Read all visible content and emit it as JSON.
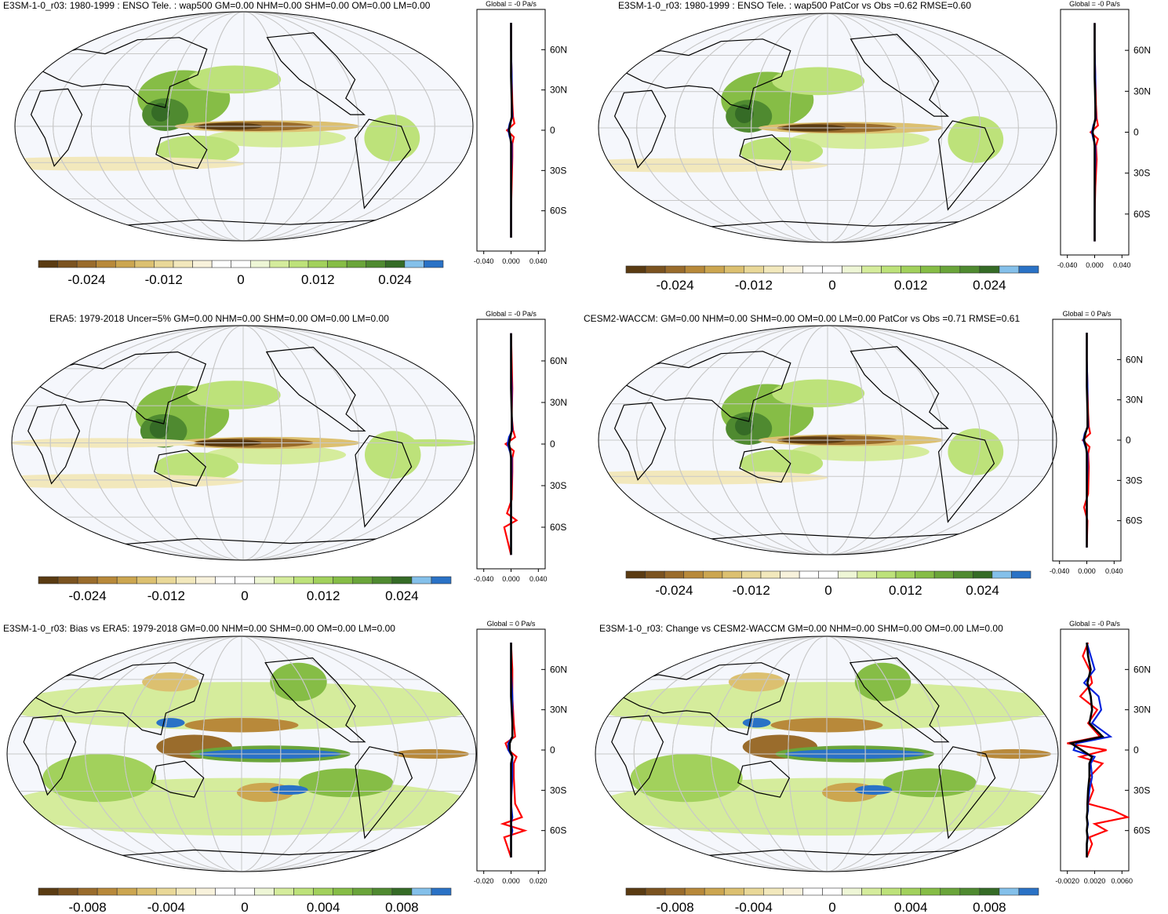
{
  "colors": {
    "ocean": "#f5f7fc",
    "grid": "#c8c8c8",
    "land_line": "#000000",
    "line_red": "#ff0000",
    "line_blue": "#0022dd",
    "line_black": "#000000",
    "palette": [
      "#5a3b12",
      "#7b5320",
      "#9a6c2c",
      "#b8893a",
      "#cca650",
      "#dcc070",
      "#e9d898",
      "#f2e8bc",
      "#f8f2dc",
      "#ffffff",
      "#ffffff",
      "#eef6d6",
      "#d5ec9c",
      "#bde27a",
      "#a2d15c",
      "#86bd46",
      "#6aa53a",
      "#4f8a30",
      "#356b26",
      "#84c0ea",
      "#2a72c6"
    ]
  },
  "panels": [
    {
      "id": "e3sm-model",
      "title": "E3SM-1-0_r03: 1980-1999 : ENSO Tele. : wap500 GM=0.00 NHM=0.00 SHM=0.00 OM=0.00 LM=0.00",
      "global_label": "Global = -0 Pa/s",
      "lat_labels": [
        "60N",
        "30N",
        "0",
        "30S",
        "60S"
      ],
      "x_ticks": [
        "-0.040",
        "0.000",
        "0.040"
      ],
      "colorbar_labels": [
        "-0.024",
        "-0.012",
        "0",
        "0.012",
        "0.024"
      ],
      "chart_data": {
        "type": "heatmap",
        "variable": "wap500",
        "units": "Pa/s",
        "projection": "Robinson",
        "colorbar_ticks": [
          -0.024,
          -0.012,
          0,
          0.012,
          0.024
        ],
        "zonal_mean": {
          "type": "line",
          "xlim": [
            -0.05,
            0.05
          ],
          "lat": [
            80,
            60,
            40,
            20,
            10,
            5,
            0,
            -5,
            -10,
            -20,
            -40,
            -60,
            -80
          ],
          "series": [
            {
              "name": "red",
              "values": [
                0,
                0,
                0.001,
                0.002,
                0.003,
                0.005,
                -0.006,
                0.004,
                0.002,
                0.002,
                0.001,
                0,
                0
              ]
            },
            {
              "name": "blue",
              "values": [
                0,
                0,
                0.001,
                0.001,
                0.002,
                -0.002,
                -0.004,
                -0.002,
                0.001,
                0.001,
                0,
                0,
                0
              ]
            },
            {
              "name": "black",
              "values": [
                0,
                0,
                0,
                0.001,
                0.001,
                -0.001,
                -0.003,
                -0.001,
                0,
                0,
                0,
                0,
                0
              ]
            }
          ]
        }
      }
    },
    {
      "id": "e3sm-patcor",
      "title": "E3SM-1-0_r03: 1980-1999 : ENSO Tele. : wap500 PatCor vs Obs =0.62 RMSE=0.60",
      "global_label": "Global = -0 Pa/s",
      "lat_labels": [
        "60N",
        "30N",
        "0",
        "30S",
        "60S"
      ],
      "x_ticks": [
        "-0.040",
        "0.000",
        "0.040"
      ],
      "colorbar_labels": [
        "-0.024",
        "-0.012",
        "0",
        "0.012",
        "0.024"
      ],
      "chart_data": {
        "type": "heatmap",
        "variable": "wap500",
        "units": "Pa/s",
        "projection": "Robinson",
        "colorbar_ticks": [
          -0.024,
          -0.012,
          0,
          0.012,
          0.024
        ],
        "pattern_correlation": 0.62,
        "rmse": 0.6,
        "zonal_mean": {
          "type": "line",
          "xlim": [
            -0.05,
            0.05
          ],
          "lat": [
            80,
            60,
            40,
            20,
            10,
            5,
            0,
            -5,
            -10,
            -20,
            -40,
            -60,
            -80
          ],
          "series": [
            {
              "name": "red",
              "values": [
                0,
                0,
                0.001,
                0.002,
                0.003,
                0.005,
                -0.006,
                0.005,
                0.002,
                0.003,
                0.001,
                0,
                0
              ]
            },
            {
              "name": "blue",
              "values": [
                0,
                0,
                0.001,
                0.001,
                0.002,
                -0.002,
                -0.004,
                -0.002,
                0.001,
                0.001,
                0,
                0,
                0
              ]
            },
            {
              "name": "black",
              "values": [
                0,
                0,
                0,
                0.001,
                0.001,
                -0.001,
                -0.003,
                -0.001,
                0,
                0,
                0,
                0,
                0
              ]
            }
          ]
        }
      }
    },
    {
      "id": "era5-obs",
      "title": "ERA5: 1979-2018 Uncer=5% GM=0.00 NHM=0.00 SHM=0.00 OM=0.00 LM=0.00",
      "global_label": "Global = -0 Pa/s",
      "lat_labels": [
        "60N",
        "30N",
        "0",
        "30S",
        "60S"
      ],
      "x_ticks": [
        "-0.040",
        "0.000",
        "0.040"
      ],
      "colorbar_labels": [
        "-0.024",
        "-0.012",
        "0",
        "0.012",
        "0.024"
      ],
      "chart_data": {
        "type": "heatmap",
        "variable": "wap500",
        "units": "Pa/s",
        "projection": "Robinson",
        "colorbar_ticks": [
          -0.024,
          -0.012,
          0,
          0.012,
          0.024
        ],
        "uncertainty": "5%",
        "zonal_mean": {
          "type": "line",
          "xlim": [
            -0.05,
            0.05
          ],
          "lat": [
            80,
            60,
            40,
            20,
            10,
            5,
            0,
            -5,
            -10,
            -20,
            -40,
            -50,
            -55,
            -60,
            -80
          ],
          "series": [
            {
              "name": "red",
              "values": [
                0,
                0.001,
                0.002,
                0.001,
                0.003,
                0.006,
                -0.008,
                0.004,
                0.002,
                0.002,
                0.001,
                -0.006,
                0.008,
                -0.01,
                0
              ]
            },
            {
              "name": "blue",
              "values": [
                0,
                0,
                0.001,
                0.001,
                0.002,
                -0.003,
                -0.005,
                -0.002,
                0.001,
                0.001,
                0,
                0,
                0,
                0,
                0
              ]
            },
            {
              "name": "black",
              "values": [
                0,
                0,
                0,
                0.001,
                0.001,
                -0.001,
                -0.003,
                -0.001,
                0,
                0,
                0,
                0,
                0,
                0,
                0
              ]
            }
          ]
        }
      }
    },
    {
      "id": "cesm2-waccm",
      "title": "CESM2-WACCM: GM=0.00 NHM=0.00 SHM=0.00 OM=0.00 LM=0.00 PatCor vs Obs =0.71 RMSE=0.61",
      "global_label": "Global = 0 Pa/s",
      "lat_labels": [
        "60N",
        "30N",
        "0",
        "30S",
        "60S"
      ],
      "x_ticks": [
        "-0.040",
        "0.000",
        "0.040"
      ],
      "colorbar_labels": [
        "-0.024",
        "-0.012",
        "0",
        "0.012",
        "0.024"
      ],
      "chart_data": {
        "type": "heatmap",
        "variable": "wap500",
        "units": "Pa/s",
        "projection": "Robinson",
        "colorbar_ticks": [
          -0.024,
          -0.012,
          0,
          0.012,
          0.024
        ],
        "pattern_correlation": 0.71,
        "rmse": 0.61,
        "zonal_mean": {
          "type": "line",
          "xlim": [
            -0.05,
            0.05
          ],
          "lat": [
            80,
            60,
            40,
            20,
            10,
            5,
            0,
            -5,
            -10,
            -20,
            -40,
            -50,
            -60,
            -80
          ],
          "series": [
            {
              "name": "red",
              "values": [
                0,
                0,
                0.001,
                0.002,
                0.003,
                0.005,
                -0.006,
                0.004,
                0.002,
                0.003,
                0.002,
                -0.004,
                0.001,
                0
              ]
            },
            {
              "name": "blue",
              "values": [
                0,
                0,
                0.001,
                0.001,
                0.002,
                -0.003,
                -0.005,
                -0.002,
                0.001,
                0.001,
                0,
                0,
                0,
                0
              ]
            },
            {
              "name": "black",
              "values": [
                0,
                0,
                0,
                0.001,
                0.001,
                -0.002,
                -0.004,
                -0.001,
                0,
                0,
                0,
                0,
                0,
                0
              ]
            }
          ]
        }
      }
    },
    {
      "id": "e3sm-bias",
      "title": "E3SM-1-0_r03: Bias vs ERA5: 1979-2018 GM=0.00 NHM=0.00 SHM=0.00 OM=0.00 LM=0.00",
      "global_label": "Global = 0 Pa/s",
      "lat_labels": [
        "60N",
        "30N",
        "0",
        "30S",
        "60S"
      ],
      "x_ticks": [
        "-0.020",
        "0.000",
        "0.020"
      ],
      "colorbar_labels": [
        "-0.008",
        "-0.004",
        "0",
        "0.004",
        "0.008"
      ],
      "chart_data": {
        "type": "heatmap",
        "variable": "wap500",
        "units": "Pa/s",
        "projection": "Robinson",
        "colorbar_ticks": [
          -0.008,
          -0.004,
          0,
          0.004,
          0.008
        ],
        "zonal_mean": {
          "type": "line",
          "xlim": [
            -0.025,
            0.025
          ],
          "lat": [
            80,
            60,
            40,
            20,
            10,
            5,
            0,
            -5,
            -10,
            -20,
            -40,
            -50,
            -55,
            -60,
            -65,
            -80
          ],
          "series": [
            {
              "name": "red",
              "values": [
                0,
                0.001,
                0.001,
                0.002,
                0.003,
                -0.004,
                -0.002,
                0.004,
                0.002,
                0.002,
                0.003,
                0.008,
                -0.006,
                0.01,
                -0.005,
                0
              ]
            },
            {
              "name": "blue",
              "values": [
                0,
                0,
                0.001,
                0.001,
                0.001,
                -0.002,
                -0.002,
                0.001,
                0.001,
                0.001,
                0,
                0.001,
                0,
                0.001,
                0,
                0
              ]
            },
            {
              "name": "black",
              "values": [
                0,
                0,
                0,
                0.001,
                0.001,
                -0.001,
                -0.001,
                0.001,
                0,
                0,
                0,
                0,
                0,
                0,
                0,
                0
              ]
            }
          ]
        }
      }
    },
    {
      "id": "e3sm-change",
      "title": "E3SM-1-0_r03: Change vs CESM2-WACCM GM=0.00 NHM=0.00 SHM=0.00 OM=0.00 LM=0.00",
      "global_label": "Global = -0 Pa/s",
      "lat_labels": [
        "60N",
        "30N",
        "0",
        "30S",
        "60S"
      ],
      "x_ticks": [
        "-0.0020",
        "0.0020",
        "0.0060"
      ],
      "colorbar_labels": [
        "-0.008",
        "-0.004",
        "0",
        "0.004",
        "0.008"
      ],
      "chart_data": {
        "type": "heatmap",
        "variable": "wap500",
        "units": "Pa/s",
        "projection": "Robinson",
        "colorbar_ticks": [
          -0.008,
          -0.004,
          0,
          0.004,
          0.008
        ],
        "zonal_mean": {
          "type": "line",
          "xlim": [
            -0.004,
            0.0064
          ],
          "lat": [
            80,
            70,
            60,
            50,
            40,
            30,
            20,
            10,
            5,
            0,
            -5,
            -10,
            -20,
            -30,
            -40,
            -45,
            -50,
            -55,
            -60,
            -65,
            -70,
            -80
          ],
          "series": [
            {
              "name": "red",
              "values": [
                0.0002,
                -0.0006,
                0.0004,
                0.0008,
                -0.001,
                0.0016,
                0.0002,
                0.002,
                -0.003,
                0.003,
                -0.001,
                0.0024,
                0.0004,
                0.001,
                0.0002,
                0.004,
                0.0062,
                0.0012,
                0.003,
                0.0004,
                0.0008,
                0
              ]
            },
            {
              "name": "blue",
              "values": [
                0,
                0.0006,
                0.0012,
                -0.0004,
                0.0018,
                0.0022,
                0.0008,
                0.0036,
                -0.0016,
                -0.002,
                0.0012,
                0.0006,
                0.0008,
                0.0004,
                0.0002,
                0.0002,
                0,
                0.0002,
                0,
                0.0002,
                0,
                0
              ]
            },
            {
              "name": "black",
              "values": [
                0,
                0.0002,
                0.0006,
                0.0001,
                0.0006,
                0.0008,
                0.0004,
                0.0024,
                -0.0024,
                -0.0008,
                0.0008,
                0.0004,
                0.0004,
                0.0002,
                0.0001,
                0.0001,
                0,
                0.0001,
                0,
                0.0001,
                0,
                0
              ]
            }
          ]
        }
      }
    }
  ]
}
